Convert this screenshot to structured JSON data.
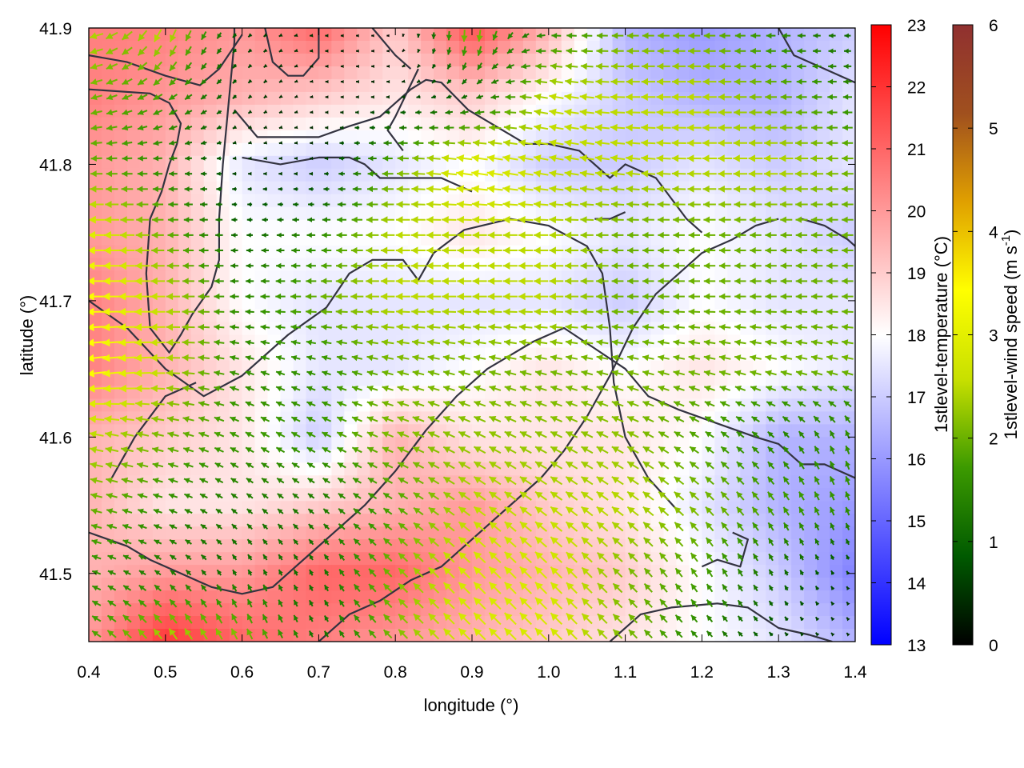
{
  "chart_data": {
    "type": "heatmap",
    "xlabel": "longitude (°)",
    "ylabel": "latitude (°)",
    "xlim": [
      0.4,
      1.4
    ],
    "ylim": [
      41.45,
      41.9
    ],
    "xticks": [
      "0.4",
      "0.5",
      "0.6",
      "0.7",
      "0.8",
      "0.9",
      "1.0",
      "1.1",
      "1.2",
      "1.3",
      "1.4"
    ],
    "yticks": [
      "41.5",
      "41.6",
      "41.7",
      "41.8",
      "41.9"
    ],
    "temperature_colorbar": {
      "label": "1stlevel-temperature (°C)",
      "range": [
        13,
        23
      ],
      "ticks": [
        "13",
        "14",
        "15",
        "16",
        "17",
        "18",
        "19",
        "20",
        "21",
        "22",
        "23"
      ],
      "colors": [
        "#0000ff",
        "#ffffff",
        "#ff0000"
      ]
    },
    "wind_colorbar": {
      "label_prefix": "1stlevel-wind speed (m s",
      "label_exp": "-1",
      "label_suffix": ")",
      "range": [
        0,
        6
      ],
      "ticks": [
        "0",
        "1",
        "2",
        "3",
        "4",
        "5",
        "6"
      ],
      "colors": [
        "#000000",
        "#005a00",
        "#3c9a00",
        "#c8e000",
        "#ffff00",
        "#e0a000",
        "#a0501e",
        "#903030"
      ]
    },
    "temperature_field": {
      "lon": [
        0.4,
        0.5,
        0.6,
        0.7,
        0.8,
        0.9,
        1.0,
        1.1,
        1.2,
        1.3,
        1.4
      ],
      "lat": [
        41.9,
        41.85,
        41.8,
        41.75,
        41.7,
        41.65,
        41.6,
        41.55,
        41.5,
        41.45
      ],
      "values": [
        [
          20.5,
          20.5,
          20.0,
          21.0,
          19.0,
          21.5,
          19.5,
          16.5,
          16.0,
          16.5,
          17.0
        ],
        [
          20.5,
          20.0,
          19.5,
          19.0,
          18.5,
          19.0,
          18.0,
          17.0,
          16.5,
          16.5,
          17.5
        ],
        [
          20.0,
          19.5,
          17.5,
          17.0,
          17.5,
          18.0,
          17.0,
          17.0,
          17.5,
          17.0,
          17.5
        ],
        [
          20.0,
          19.5,
          18.0,
          18.0,
          18.0,
          18.5,
          18.0,
          17.5,
          18.0,
          17.5,
          17.0
        ],
        [
          20.5,
          19.5,
          18.0,
          17.5,
          17.5,
          17.5,
          17.5,
          17.0,
          18.0,
          17.5,
          17.5
        ],
        [
          20.5,
          19.5,
          18.5,
          17.5,
          17.5,
          18.0,
          18.5,
          18.0,
          18.5,
          18.0,
          17.5
        ],
        [
          19.5,
          19.0,
          18.5,
          17.0,
          19.5,
          18.5,
          18.5,
          18.5,
          18.0,
          16.5,
          16.5
        ],
        [
          19.5,
          18.5,
          18.5,
          19.0,
          19.5,
          20.0,
          19.0,
          18.5,
          17.5,
          16.5,
          16.0
        ],
        [
          19.5,
          20.0,
          20.0,
          21.0,
          21.0,
          20.0,
          19.5,
          19.0,
          18.0,
          17.0,
          15.5
        ],
        [
          20.0,
          22.0,
          21.0,
          20.5,
          20.0,
          19.5,
          19.0,
          18.5,
          18.0,
          17.5,
          16.5
        ]
      ]
    },
    "wind_field": {
      "lon": [
        0.4,
        0.5,
        0.6,
        0.7,
        0.8,
        0.9,
        1.0,
        1.1,
        1.2,
        1.3,
        1.4
      ],
      "lat": [
        41.9,
        41.85,
        41.8,
        41.75,
        41.7,
        41.65,
        41.6,
        41.55,
        41.5,
        41.45
      ],
      "u": [
        [
          -2.5,
          -1.0,
          -0.5,
          -0.5,
          0.0,
          0.0,
          -1.5,
          -2.0,
          -2.0,
          -1.5,
          -1.0
        ],
        [
          -2.0,
          -1.5,
          -0.5,
          -0.3,
          -0.5,
          -1.0,
          -2.5,
          -2.5,
          -2.5,
          -2.0,
          -1.5
        ],
        [
          -2.0,
          -1.5,
          -0.5,
          -0.5,
          -2.0,
          -3.0,
          -2.5,
          -2.5,
          -2.5,
          -2.5,
          -2.0
        ],
        [
          -3.0,
          -2.0,
          -1.0,
          -1.5,
          -2.5,
          -2.5,
          -2.5,
          -2.0,
          -2.0,
          -2.0,
          -2.0
        ],
        [
          -3.5,
          -2.5,
          -1.5,
          -2.0,
          -2.5,
          -2.5,
          -2.5,
          -2.0,
          -2.0,
          -2.0,
          -2.0
        ],
        [
          -3.5,
          -2.5,
          -1.5,
          -1.5,
          -2.0,
          -2.0,
          -2.0,
          -2.0,
          -2.0,
          -2.0,
          -2.0
        ],
        [
          -2.5,
          -2.0,
          -1.5,
          -1.5,
          -2.0,
          -2.0,
          -2.0,
          -2.0,
          -1.5,
          -1.0,
          -0.5
        ],
        [
          -2.0,
          -1.5,
          -1.0,
          -1.0,
          -1.5,
          -2.0,
          -2.0,
          -2.0,
          -1.5,
          -1.0,
          -0.5
        ],
        [
          -1.5,
          -1.0,
          -0.5,
          -0.5,
          -1.5,
          -2.0,
          -2.0,
          -1.5,
          -1.0,
          -0.5,
          -0.3
        ],
        [
          -1.5,
          -1.5,
          -1.0,
          -0.5,
          -1.5,
          -2.0,
          -2.0,
          -1.5,
          -1.0,
          -0.5,
          -0.3
        ]
      ],
      "v": [
        [
          -0.5,
          -2.5,
          -0.5,
          0.0,
          0.0,
          -2.5,
          0.0,
          0.0,
          0.0,
          0.0,
          0.0
        ],
        [
          -0.5,
          -1.0,
          -0.5,
          0.0,
          0.0,
          -0.5,
          0.5,
          0.0,
          0.0,
          0.0,
          0.0
        ],
        [
          0.0,
          0.0,
          0.0,
          0.0,
          0.0,
          0.5,
          0.5,
          0.3,
          0.0,
          0.0,
          0.0
        ],
        [
          0.0,
          0.0,
          0.0,
          0.0,
          0.0,
          0.0,
          0.0,
          0.0,
          0.0,
          0.0,
          0.0
        ],
        [
          0.0,
          0.0,
          0.0,
          0.0,
          0.0,
          0.0,
          0.0,
          0.0,
          0.0,
          0.0,
          0.0
        ],
        [
          -0.5,
          0.0,
          0.5,
          0.5,
          0.5,
          0.5,
          0.5,
          0.5,
          0.5,
          0.5,
          0.5
        ],
        [
          0.5,
          0.5,
          0.8,
          0.8,
          0.8,
          1.0,
          1.0,
          1.0,
          1.0,
          1.0,
          1.5
        ],
        [
          0.5,
          0.5,
          0.8,
          0.8,
          1.0,
          1.5,
          1.5,
          1.5,
          1.5,
          1.5,
          1.5
        ],
        [
          0.5,
          0.8,
          1.0,
          1.0,
          1.5,
          2.0,
          2.0,
          1.5,
          1.5,
          1.0,
          0.5
        ],
        [
          1.0,
          2.0,
          2.0,
          1.0,
          1.5,
          2.0,
          2.0,
          1.5,
          1.0,
          0.5,
          0.3
        ]
      ]
    },
    "boundaries": [
      [
        [
          0.4,
          41.88
        ],
        [
          0.45,
          41.875
        ],
        [
          0.5,
          41.865
        ],
        [
          0.545,
          41.858
        ],
        [
          0.57,
          41.87
        ],
        [
          0.6,
          41.895
        ]
      ],
      [
        [
          0.4,
          41.855
        ],
        [
          0.48,
          41.852
        ],
        [
          0.505,
          41.845
        ],
        [
          0.52,
          41.83
        ],
        [
          0.515,
          41.815
        ],
        [
          0.505,
          41.8
        ],
        [
          0.495,
          41.78
        ],
        [
          0.48,
          41.76
        ],
        [
          0.475,
          41.72
        ],
        [
          0.48,
          41.68
        ],
        [
          0.505,
          41.662
        ],
        [
          0.52,
          41.675
        ],
        [
          0.535,
          41.69
        ],
        [
          0.56,
          41.71
        ],
        [
          0.57,
          41.73
        ],
        [
          0.57,
          41.76
        ],
        [
          0.575,
          41.8
        ],
        [
          0.58,
          41.83
        ],
        [
          0.585,
          41.86
        ],
        [
          0.59,
          41.89
        ],
        [
          0.59,
          41.9
        ]
      ],
      [
        [
          0.59,
          41.84
        ],
        [
          0.62,
          41.82
        ],
        [
          0.66,
          41.82
        ],
        [
          0.7,
          41.82
        ],
        [
          0.74,
          41.828
        ],
        [
          0.78,
          41.835
        ],
        [
          0.82,
          41.855
        ],
        [
          0.84,
          41.862
        ],
        [
          0.86,
          41.86
        ],
        [
          0.895,
          41.84
        ],
        [
          0.94,
          41.825
        ],
        [
          0.97,
          41.815
        ],
        [
          1.0,
          41.815
        ],
        [
          1.04,
          41.81
        ],
        [
          1.08,
          41.79
        ],
        [
          1.1,
          41.8
        ],
        [
          1.14,
          41.79
        ],
        [
          1.16,
          41.775
        ],
        [
          1.18,
          41.76
        ],
        [
          1.2,
          41.75
        ]
      ],
      [
        [
          0.63,
          41.9
        ],
        [
          0.64,
          41.875
        ],
        [
          0.66,
          41.865
        ],
        [
          0.68,
          41.865
        ],
        [
          0.7,
          41.878
        ],
        [
          0.7,
          41.9
        ]
      ],
      [
        [
          0.77,
          41.9
        ],
        [
          0.8,
          41.88
        ],
        [
          0.82,
          41.87
        ]
      ],
      [
        [
          0.6,
          41.805
        ],
        [
          0.65,
          41.8
        ],
        [
          0.7,
          41.805
        ],
        [
          0.74,
          41.805
        ],
        [
          0.76,
          41.8
        ],
        [
          0.78,
          41.79
        ],
        [
          0.82,
          41.79
        ],
        [
          0.86,
          41.79
        ],
        [
          0.88,
          41.785
        ],
        [
          0.9,
          41.78
        ]
      ],
      [
        [
          0.83,
          41.87
        ],
        [
          0.8,
          41.835
        ],
        [
          0.79,
          41.825
        ],
        [
          0.81,
          41.81
        ]
      ],
      [
        [
          0.4,
          41.7
        ],
        [
          0.45,
          41.68
        ],
        [
          0.5,
          41.65
        ],
        [
          0.55,
          41.63
        ],
        [
          0.6,
          41.645
        ],
        [
          0.66,
          41.675
        ],
        [
          0.71,
          41.695
        ],
        [
          0.74,
          41.72
        ],
        [
          0.77,
          41.73
        ],
        [
          0.81,
          41.73
        ],
        [
          0.83,
          41.715
        ],
        [
          0.85,
          41.735
        ],
        [
          0.89,
          41.752
        ],
        [
          0.95,
          41.76
        ],
        [
          1.0,
          41.755
        ],
        [
          1.05,
          41.74
        ],
        [
          1.07,
          41.72
        ],
        [
          1.08,
          41.68
        ],
        [
          1.085,
          41.64
        ],
        [
          1.1,
          41.6
        ],
        [
          1.13,
          41.57
        ],
        [
          1.17,
          41.545
        ]
      ],
      [
        [
          0.43,
          41.57
        ],
        [
          0.46,
          41.6
        ],
        [
          0.5,
          41.63
        ],
        [
          0.54,
          41.64
        ]
      ],
      [
        [
          0.4,
          41.53
        ],
        [
          0.45,
          41.52
        ],
        [
          0.48,
          41.51
        ],
        [
          0.52,
          41.5
        ],
        [
          0.56,
          41.49
        ],
        [
          0.6,
          41.485
        ],
        [
          0.64,
          41.49
        ],
        [
          0.68,
          41.51
        ],
        [
          0.72,
          41.53
        ],
        [
          0.76,
          41.55
        ],
        [
          0.8,
          41.575
        ],
        [
          0.84,
          41.605
        ],
        [
          0.88,
          41.63
        ],
        [
          0.92,
          41.65
        ],
        [
          0.95,
          41.66
        ],
        [
          0.98,
          41.67
        ],
        [
          1.02,
          41.68
        ],
        [
          1.06,
          41.665
        ],
        [
          1.1,
          41.65
        ],
        [
          1.13,
          41.63
        ],
        [
          1.17,
          41.62
        ],
        [
          1.22,
          41.61
        ],
        [
          1.27,
          41.6
        ],
        [
          1.3,
          41.595
        ],
        [
          1.33,
          41.58
        ],
        [
          1.36,
          41.58
        ],
        [
          1.4,
          41.57
        ]
      ],
      [
        [
          0.7,
          41.45
        ],
        [
          0.74,
          41.47
        ],
        [
          0.78,
          41.48
        ],
        [
          0.82,
          41.495
        ],
        [
          0.86,
          41.505
        ],
        [
          0.9,
          41.525
        ],
        [
          0.94,
          41.545
        ],
        [
          0.96,
          41.555
        ],
        [
          0.99,
          41.57
        ],
        [
          1.02,
          41.59
        ],
        [
          1.05,
          41.615
        ],
        [
          1.08,
          41.645
        ],
        [
          1.11,
          41.68
        ],
        [
          1.14,
          41.705
        ],
        [
          1.17,
          41.72
        ],
        [
          1.2,
          41.735
        ],
        [
          1.24,
          41.745
        ],
        [
          1.27,
          41.755
        ],
        [
          1.3,
          41.76
        ]
      ],
      [
        [
          1.08,
          41.45
        ],
        [
          1.12,
          41.47
        ],
        [
          1.16,
          41.475
        ],
        [
          1.22,
          41.478
        ],
        [
          1.26,
          41.475
        ],
        [
          1.3,
          41.46
        ],
        [
          1.34,
          41.455
        ],
        [
          1.37,
          41.45
        ]
      ],
      [
        [
          1.3,
          41.9
        ],
        [
          1.32,
          41.88
        ],
        [
          1.36,
          41.87
        ],
        [
          1.4,
          41.86
        ]
      ],
      [
        [
          1.33,
          41.76
        ],
        [
          1.36,
          41.755
        ],
        [
          1.39,
          41.745
        ],
        [
          1.4,
          41.74
        ]
      ],
      [
        [
          1.2,
          41.505
        ],
        [
          1.22,
          41.51
        ],
        [
          1.25,
          41.505
        ],
        [
          1.26,
          41.525
        ],
        [
          1.24,
          41.53
        ]
      ],
      [
        [
          1.06,
          41.76
        ],
        [
          1.08,
          41.76
        ],
        [
          1.1,
          41.765
        ]
      ]
    ]
  }
}
